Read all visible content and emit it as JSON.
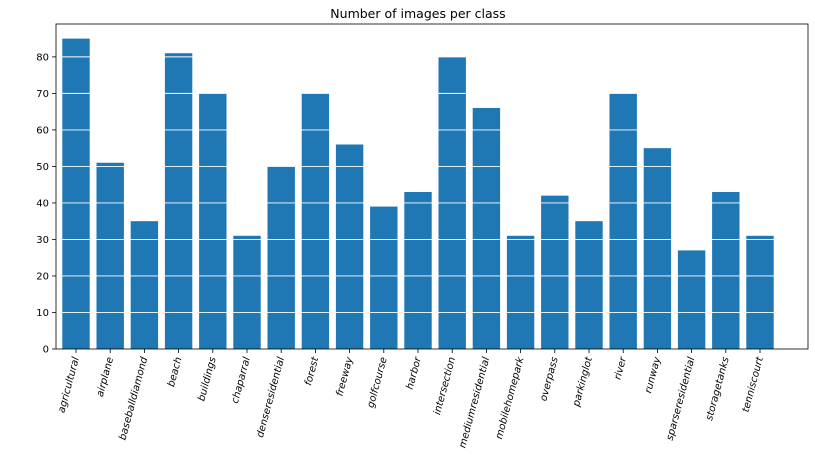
{
  "chart_data": {
    "type": "bar",
    "title": "Number of images per class",
    "xlabel": "",
    "ylabel": "",
    "categories": [
      "agricultural",
      "airplane",
      "baseballdiamond",
      "beach",
      "buildings",
      "chaparral",
      "denseresidential",
      "forest",
      "freeway",
      "golfcourse",
      "harbor",
      "intersection",
      "mediumresidential",
      "mobilehomepark",
      "overpass",
      "parkinglot",
      "river",
      "runway",
      "sparseresidential",
      "storagetanks",
      "tenniscourt"
    ],
    "values": [
      85,
      51,
      35,
      81,
      70,
      31,
      50,
      70,
      56,
      39,
      43,
      80,
      66,
      31,
      42,
      35,
      70,
      55,
      27,
      43,
      31
    ],
    "ylim": [
      0,
      89
    ],
    "yticks": [
      0,
      10,
      20,
      30,
      40,
      50,
      60,
      70,
      80
    ],
    "grid": "horizontal, drawn over bars",
    "tick_label_rotation": "75 degrees",
    "colors": {
      "bar": "#1f77b4",
      "grid": "#ffffff",
      "axes": "#000000",
      "text": "#000000"
    }
  }
}
